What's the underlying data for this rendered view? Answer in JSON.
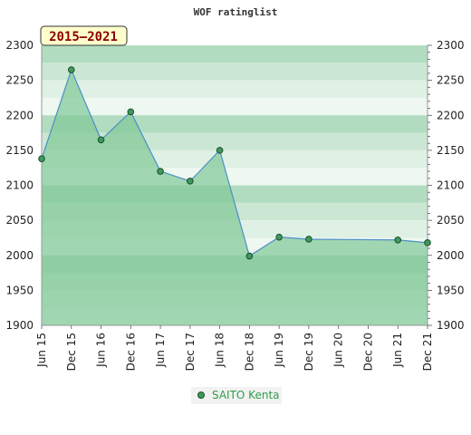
{
  "chart_data": {
    "type": "area",
    "title": "WOF ratinglist",
    "badge": "2015–2021",
    "x_ticks": [
      "Jun 15",
      "Dec 15",
      "Jun 16",
      "Dec 16",
      "Jun 17",
      "Dec 17",
      "Jun 18",
      "Dec 18",
      "Jun 19",
      "Dec 19",
      "Jun 20",
      "Dec 20",
      "Jun 21",
      "Dec 21"
    ],
    "y_ticks": [
      1900,
      1950,
      2000,
      2050,
      2100,
      2150,
      2200,
      2250,
      2300
    ],
    "ylim": [
      1900,
      2300
    ],
    "grid": true,
    "legend_position": "bottom",
    "series": [
      {
        "name": "SAITO Kenta",
        "x": [
          0,
          1,
          2,
          3,
          4,
          5,
          6,
          7,
          8,
          9,
          12,
          13
        ],
        "values": [
          2138,
          2265,
          2165,
          2205,
          2120,
          2106,
          2150,
          1999,
          2026,
          2023,
          2022,
          2018
        ]
      }
    ],
    "colors": {
      "area_fill": "#7fc796",
      "line": "#4a90c8",
      "marker": "#3d9a5c",
      "badge_bg": "#ffffcc"
    }
  }
}
